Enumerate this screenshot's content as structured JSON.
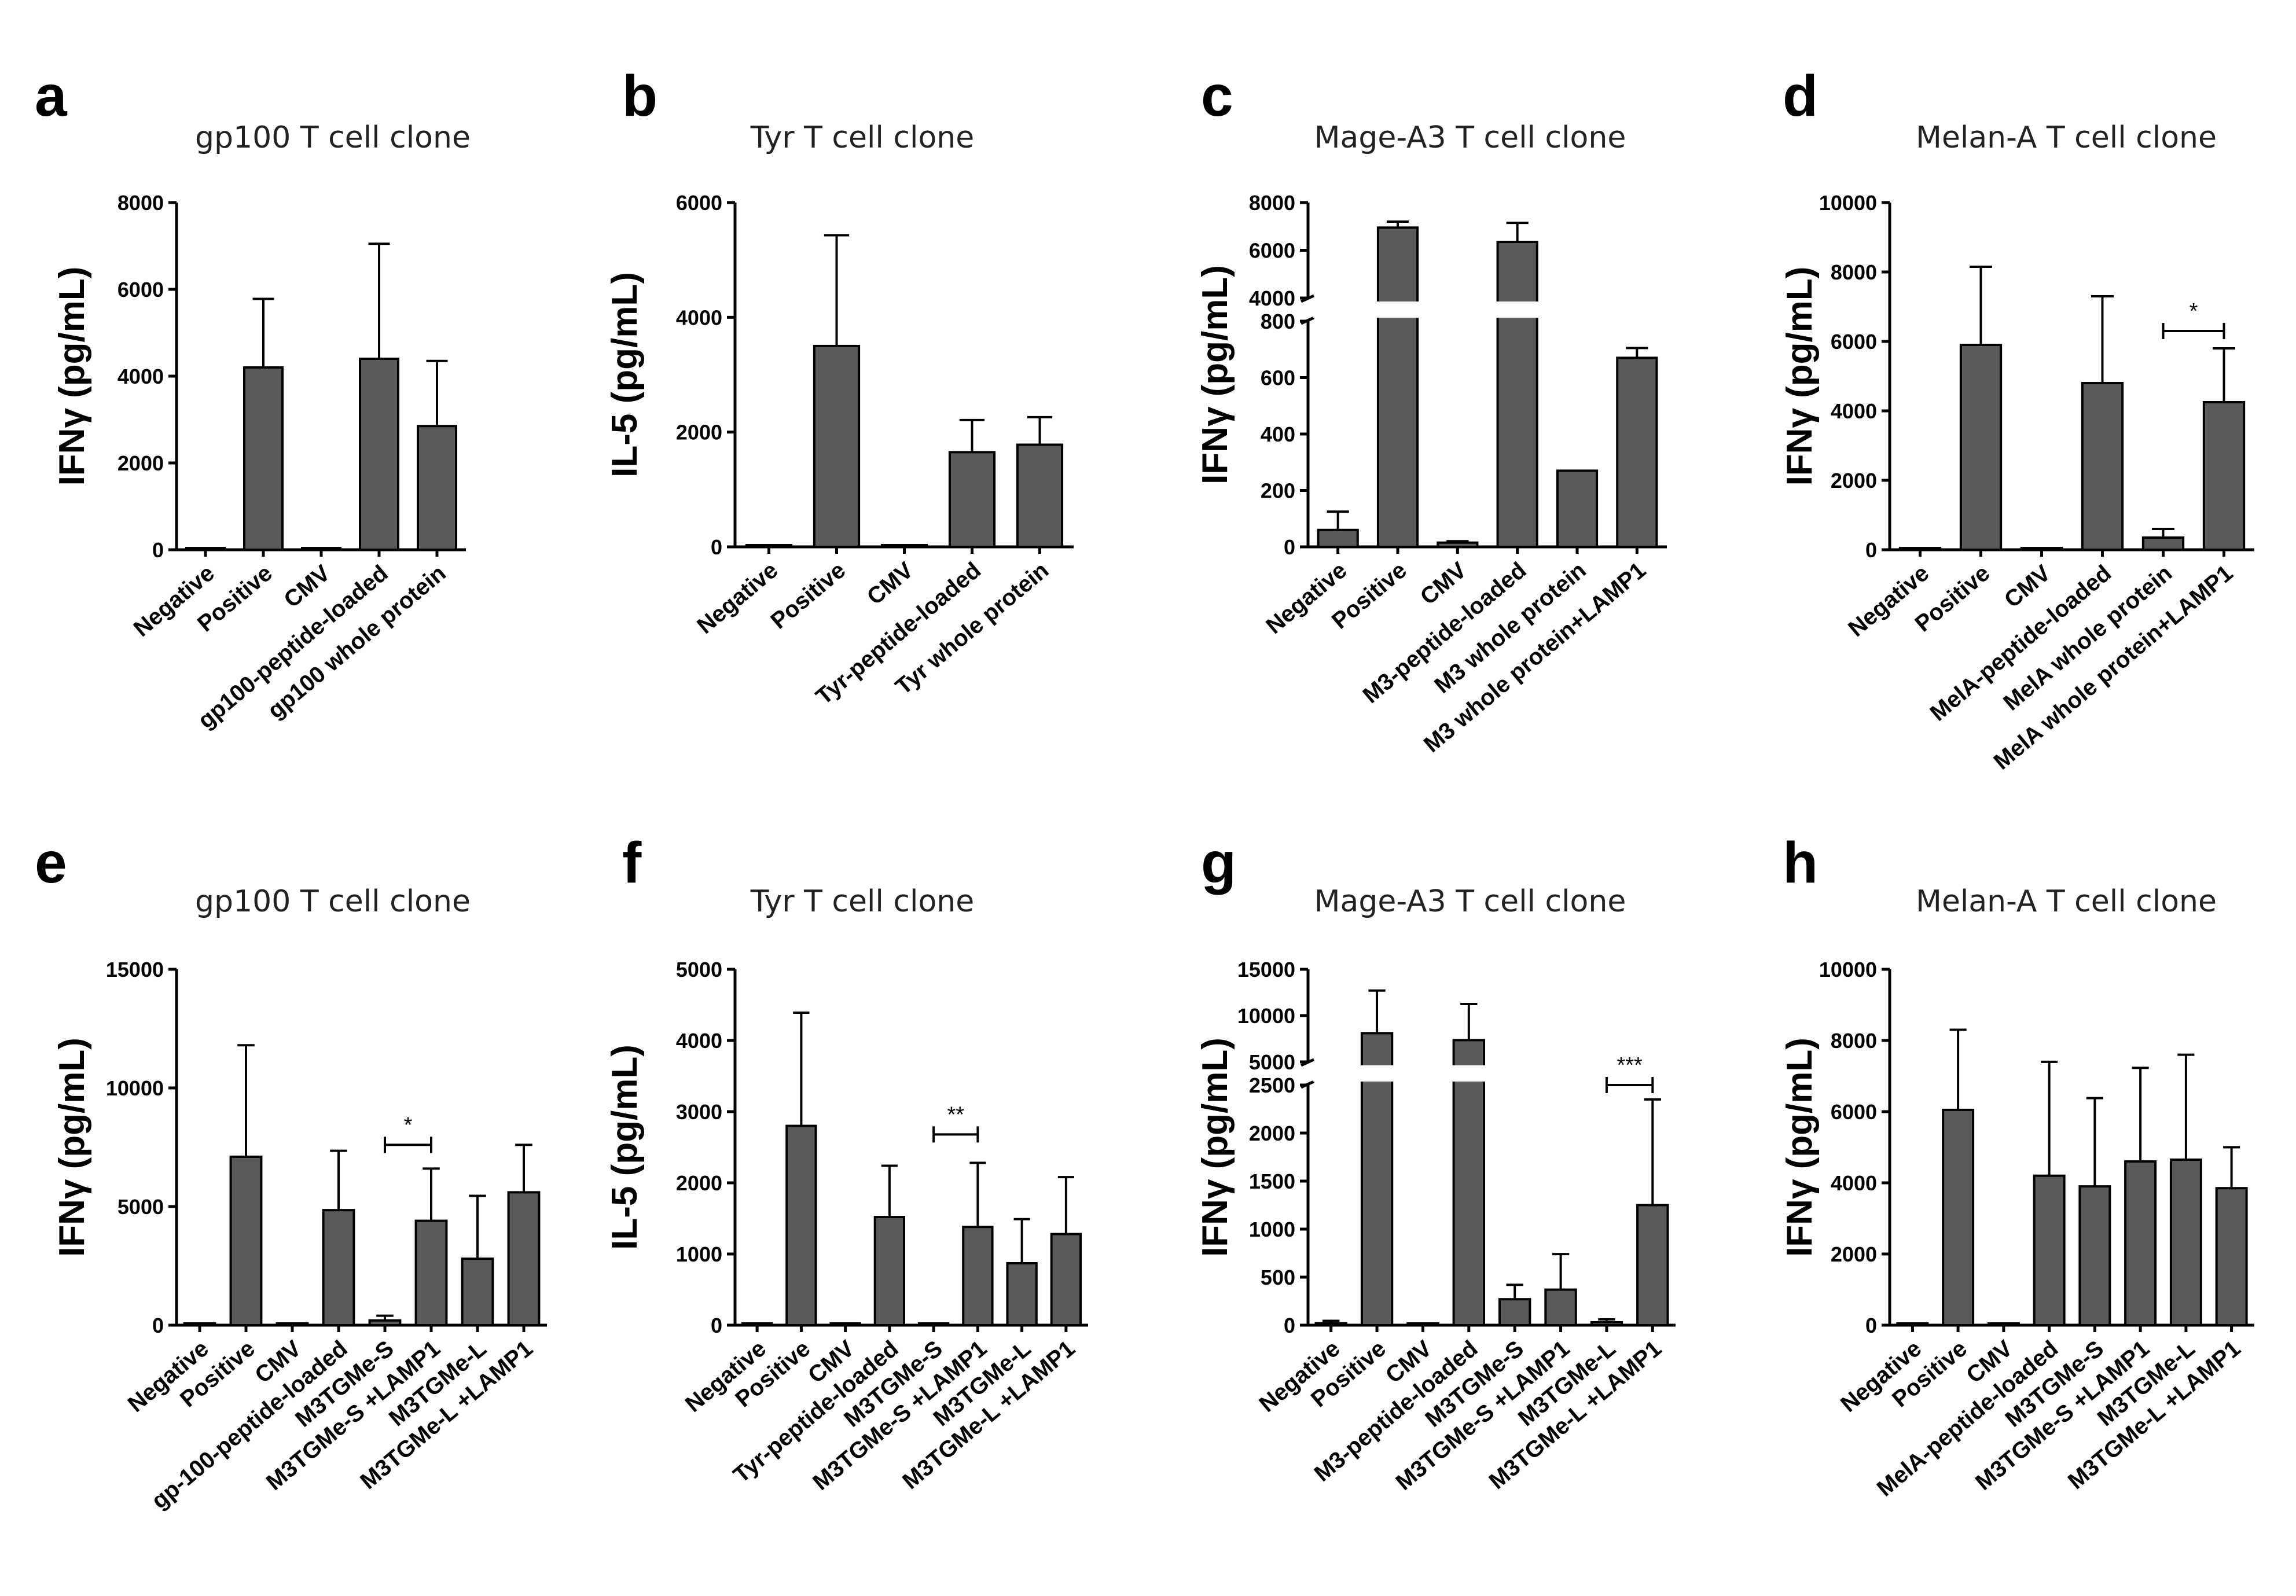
{
  "chart_data": [
    {
      "panel": "a",
      "type": "bar",
      "title": "gp100 T cell clone",
      "ylabel": "IFNγ (pg/mL)",
      "categories": [
        "Negative",
        "Positive",
        "CMV",
        "gp100-peptide-loaded",
        "gp100 whole protein"
      ],
      "values": [
        10,
        4200,
        40,
        4400,
        2850
      ],
      "errors": [
        0,
        1580,
        0,
        2650,
        1500
      ],
      "ylim": [
        0,
        8000
      ],
      "yticks": [
        "0",
        "2000",
        "4000",
        "6000",
        "8000"
      ],
      "significance": []
    },
    {
      "panel": "b",
      "type": "bar",
      "title": "Tyr T cell clone",
      "ylabel": "IL-5 (pg/mL)",
      "categories": [
        "Negative",
        "Positive",
        "CMV",
        "Tyr-peptide-loaded",
        "Tyr whole protein"
      ],
      "values": [
        10,
        3500,
        10,
        1650,
        1780
      ],
      "errors": [
        0,
        1930,
        0,
        560,
        480
      ],
      "ylim": [
        0,
        6000
      ],
      "yticks": [
        "0",
        "2000",
        "4000",
        "6000"
      ],
      "significance": []
    },
    {
      "panel": "c",
      "type": "bar",
      "title": "Mage-A3 T cell clone",
      "ylabel": "IFNγ (pg/mL)",
      "categories": [
        "Negative",
        "Positive",
        "CMV",
        "M3-peptide-loaded",
        "M3 whole protein",
        "M3 whole protein+LAMP1"
      ],
      "values": [
        60,
        6950,
        15,
        6350,
        270,
        670
      ],
      "errors": [
        65,
        250,
        5,
        800,
        0,
        35
      ],
      "ylim": [
        0,
        8000
      ],
      "axis_break": [
        800,
        4000
      ],
      "yticks": [
        "0",
        "200",
        "400",
        "600",
        "800",
        "4000",
        "6000",
        "8000"
      ],
      "significance": []
    },
    {
      "panel": "d",
      "type": "bar",
      "title": "Melan-A T cell clone",
      "ylabel": "IFNγ (pg/mL)",
      "categories": [
        "Negative",
        "Positive",
        "CMV",
        "MelA-peptide-loaded",
        "MelA whole protein",
        "MelA whole protein+LAMP1"
      ],
      "values": [
        10,
        5900,
        10,
        4800,
        350,
        4250
      ],
      "errors": [
        0,
        2250,
        0,
        2500,
        250,
        1550
      ],
      "ylim": [
        0,
        10000
      ],
      "yticks": [
        "0",
        "2000",
        "4000",
        "6000",
        "8000",
        "10000"
      ],
      "significance": [
        {
          "from": 4,
          "to": 5,
          "label": "*",
          "y": 6300
        }
      ]
    },
    {
      "panel": "e",
      "type": "bar",
      "title": "gp100 T cell clone",
      "ylabel": "IFNγ (pg/mL)",
      "categories": [
        "Negative",
        "Positive",
        "CMV",
        "gp-100-peptide-loaded",
        "M3TGMe-S",
        "M3TGMe-S +LAMP1",
        "M3TGMe-L",
        "M3TGMe-L +LAMP1"
      ],
      "values": [
        50,
        7100,
        50,
        4850,
        200,
        4400,
        2800,
        5600
      ],
      "errors": [
        0,
        4700,
        0,
        2500,
        200,
        2200,
        2650,
        2000
      ],
      "ylim": [
        0,
        15000
      ],
      "yticks": [
        "0",
        "5000",
        "10000",
        "15000"
      ],
      "significance": [
        {
          "from": 4,
          "to": 5,
          "label": "*",
          "y": 7600
        }
      ]
    },
    {
      "panel": "f",
      "type": "bar",
      "title": "Tyr T cell clone",
      "ylabel": "IL-5 (pg/mL)",
      "categories": [
        "Negative",
        "Positive",
        "CMV",
        "Tyr-peptide-loaded",
        "M3TGMe-S",
        "M3TGMe-S +LAMP1",
        "M3TGMe-L",
        "M3TGMe-L +LAMP1"
      ],
      "values": [
        10,
        2800,
        10,
        1520,
        15,
        1380,
        870,
        1280
      ],
      "errors": [
        0,
        1590,
        0,
        720,
        0,
        900,
        620,
        800
      ],
      "ylim": [
        0,
        5000
      ],
      "yticks": [
        "0",
        "1000",
        "2000",
        "3000",
        "4000",
        "5000"
      ],
      "significance": [
        {
          "from": 4,
          "to": 5,
          "label": "**",
          "y": 2680
        }
      ]
    },
    {
      "panel": "g",
      "type": "bar",
      "title": "Mage-A3 T cell clone",
      "ylabel": "IFNγ (pg/mL)",
      "categories": [
        "Negative",
        "Positive",
        "CMV",
        "M3-peptide-loaded",
        "M3TGMe-S",
        "M3TGMe-S +LAMP1",
        "M3TGMe-L",
        "M3TGMe-L +LAMP1"
      ],
      "values": [
        20,
        8100,
        10,
        7350,
        270,
        370,
        30,
        1250
      ],
      "errors": [
        25,
        4600,
        0,
        3900,
        150,
        370,
        30,
        1100
      ],
      "ylim": [
        0,
        15000
      ],
      "axis_break": [
        2500,
        5000
      ],
      "yticks": [
        "0",
        "500",
        "1000",
        "1500",
        "2000",
        "2500",
        "5000",
        "10000",
        "15000"
      ],
      "significance": [
        {
          "from": 6,
          "to": 7,
          "label": "***",
          "y": 2500
        }
      ]
    },
    {
      "panel": "h",
      "type": "bar",
      "title": "Melan-A T cell clone",
      "ylabel": "IFNγ (pg/mL)",
      "categories": [
        "Negative",
        "Positive",
        "CMV",
        "MelA-peptide-loaded",
        "M3TGMe-S",
        "M3TGMe-S +LAMP1",
        "M3TGMe-L",
        "M3TGMe-L +LAMP1"
      ],
      "values": [
        10,
        6050,
        10,
        4200,
        3900,
        4600,
        4650,
        3850
      ],
      "errors": [
        0,
        2250,
        0,
        3200,
        2480,
        2630,
        2950,
        1150
      ],
      "ylim": [
        0,
        10000
      ],
      "yticks": [
        "0",
        "2000",
        "4000",
        "6000",
        "8000",
        "10000"
      ],
      "significance": []
    }
  ]
}
